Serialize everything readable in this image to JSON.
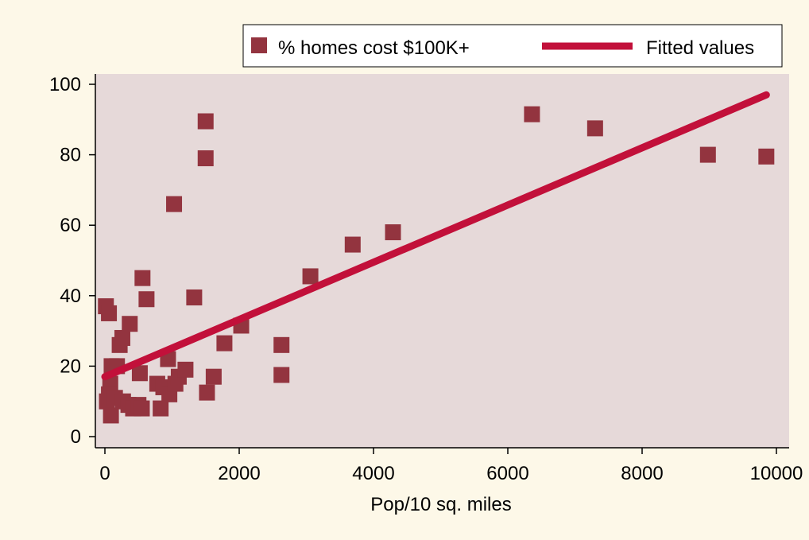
{
  "chart_data": {
    "type": "scatter",
    "title": "",
    "xlabel": "Pop/10 sq. miles",
    "ylabel": "",
    "xlim": [
      0,
      10000
    ],
    "ylim": [
      0,
      100
    ],
    "x_ticks": [
      0,
      2000,
      4000,
      6000,
      8000,
      10000
    ],
    "y_ticks": [
      0,
      20,
      40,
      60,
      80,
      100
    ],
    "grid": false,
    "legend_position": "top",
    "colors": {
      "page_background": "#fdf8e8",
      "plot_background": "#e6d9d9",
      "marker": "#93343f",
      "fit_line": "#c2103a"
    },
    "series": [
      {
        "name": "% homes cost $100K+",
        "kind": "scatter",
        "marker": "square",
        "color": "#93343f",
        "points": [
          [
            15,
            37
          ],
          [
            60,
            35
          ],
          [
            100,
            20
          ],
          [
            80,
            15
          ],
          [
            60,
            12
          ],
          [
            30,
            10
          ],
          [
            90,
            6
          ],
          [
            150,
            11
          ],
          [
            180,
            20
          ],
          [
            220,
            26
          ],
          [
            260,
            28
          ],
          [
            370,
            32
          ],
          [
            270,
            10
          ],
          [
            350,
            9
          ],
          [
            420,
            8
          ],
          [
            500,
            9
          ],
          [
            550,
            8
          ],
          [
            520,
            18
          ],
          [
            560,
            45
          ],
          [
            620,
            39
          ],
          [
            780,
            15
          ],
          [
            830,
            8
          ],
          [
            870,
            14
          ],
          [
            940,
            22
          ],
          [
            960,
            12
          ],
          [
            1050,
            15
          ],
          [
            1100,
            17
          ],
          [
            1200,
            19
          ],
          [
            1330,
            39.5
          ],
          [
            1030,
            66
          ],
          [
            1500,
            89.5
          ],
          [
            1500,
            79
          ],
          [
            1520,
            12.5
          ],
          [
            1620,
            17
          ],
          [
            1780,
            26.5
          ],
          [
            2030,
            31.5
          ],
          [
            2630,
            26
          ],
          [
            2630,
            17.5
          ],
          [
            3060,
            45.5
          ],
          [
            3690,
            54.5
          ],
          [
            4290,
            58
          ],
          [
            6360,
            91.5
          ],
          [
            7300,
            87.5
          ],
          [
            8980,
            80
          ],
          [
            9850,
            79.5
          ]
        ]
      },
      {
        "name": "Fitted values",
        "kind": "line",
        "color": "#c2103a",
        "points": [
          [
            0,
            17
          ],
          [
            9850,
            97
          ]
        ]
      }
    ]
  }
}
